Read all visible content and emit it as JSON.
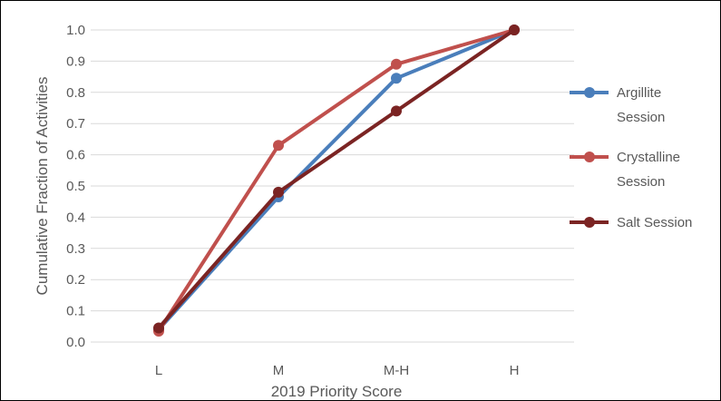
{
  "chart_data": {
    "type": "line",
    "title": "",
    "xlabel": "2019 Priority Score",
    "ylabel": "Cumulative Fraction of Activities",
    "categories": [
      "L",
      "M",
      "M-H",
      "H"
    ],
    "ylim": [
      0,
      1
    ],
    "yticks": [
      "0.0",
      "0.1",
      "0.2",
      "0.3",
      "0.4",
      "0.5",
      "0.6",
      "0.7",
      "0.8",
      "0.9",
      "1.0"
    ],
    "grid": true,
    "legend_position": "right",
    "series": [
      {
        "name": "Argillite Session",
        "legend_lines": [
          "Argillite",
          "Session"
        ],
        "color": "#4a7ebb",
        "values": [
          0.04,
          0.465,
          0.845,
          1.0
        ]
      },
      {
        "name": "Crystalline Session",
        "legend_lines": [
          "Crystalline",
          "Session"
        ],
        "color": "#c0504d",
        "values": [
          0.035,
          0.63,
          0.89,
          1.0
        ]
      },
      {
        "name": "Salt Session",
        "legend_lines": [
          "Salt Session"
        ],
        "color": "#7b2423",
        "values": [
          0.045,
          0.48,
          0.74,
          1.0
        ]
      }
    ]
  }
}
